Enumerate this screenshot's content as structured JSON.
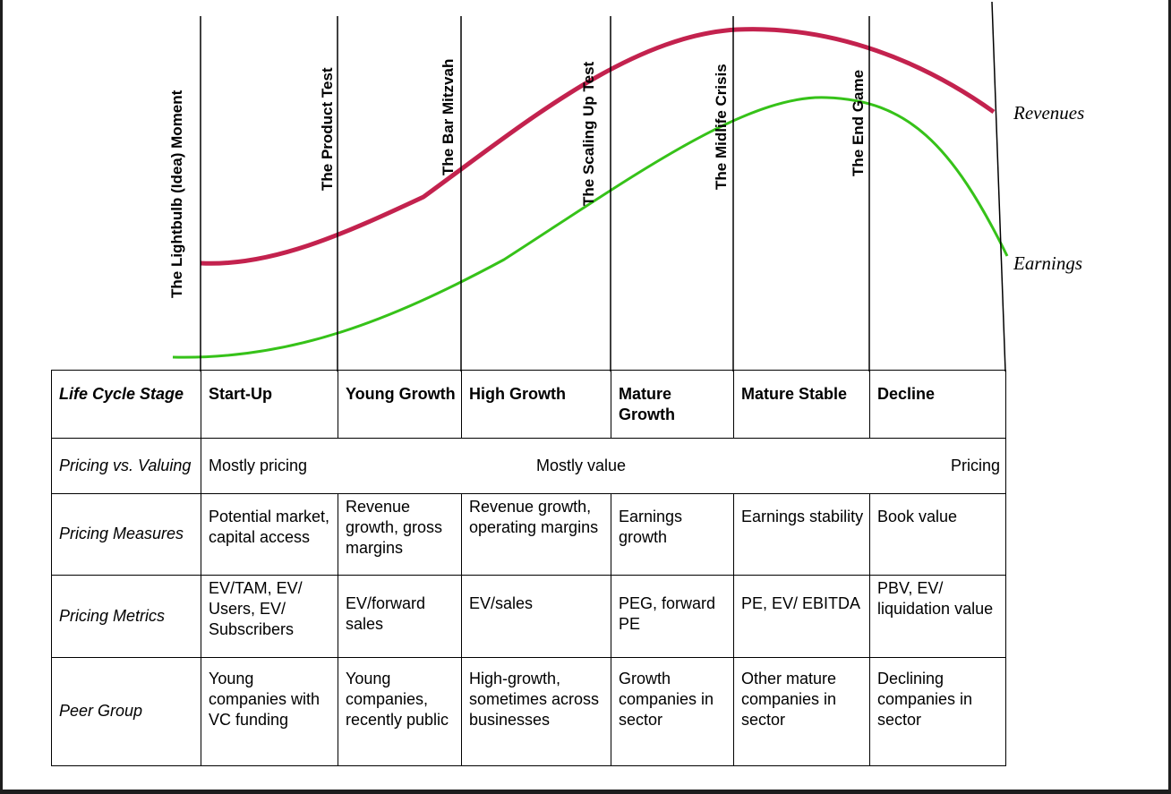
{
  "phases": [
    "The Lightbulb (Idea) Moment",
    "The Product Test",
    "The Bar Mitzvah",
    "The Scaling Up Test",
    "The Midlife Crisis",
    "The End Game"
  ],
  "curves": {
    "revenues": {
      "label": "Revenues",
      "color": "#c3224e"
    },
    "earnings": {
      "label": "Earnings",
      "color": "#36c219"
    }
  },
  "table": {
    "header": "Life Cycle Stage",
    "stages": [
      "Start-Up",
      "Young Growth",
      "High Growth",
      "Mature Growth",
      "Mature Stable",
      "Decline"
    ],
    "pricing_vs_valuing": {
      "label": "Pricing vs. Valuing",
      "left": "Mostly pricing",
      "middle": "Mostly value",
      "right": "Pricing"
    },
    "rows": [
      {
        "label": "Pricing Measures",
        "cells": [
          "Potential market, capital access",
          "Revenue growth, gross margins",
          "Revenue growth, operating margins",
          "Earnings growth",
          "Earnings stability",
          "Book value"
        ]
      },
      {
        "label": "Pricing Metrics",
        "cells": [
          "EV/TAM, EV/ Users, EV/ Subscribers",
          "EV/forward sales",
          "EV/sales",
          "PEG, forward PE",
          "PE, EV/ EBITDA",
          "PBV, EV/ liquidation value"
        ]
      },
      {
        "label": "Peer Group",
        "cells": [
          "Young companies with VC funding",
          "Young companies, recently public",
          "High-growth, sometimes across businesses",
          "Growth companies in sector",
          "Other mature companies in sector",
          "Declining companies in sector"
        ]
      }
    ]
  }
}
